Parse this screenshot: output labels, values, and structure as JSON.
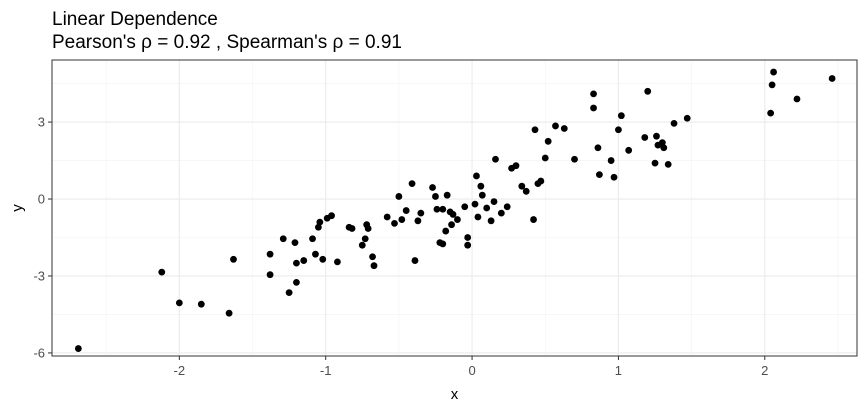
{
  "chart_data": {
    "type": "scatter",
    "title": "Linear Dependence",
    "subtitle": "Pearson's ρ = 0.92 , Spearman's ρ = 0.91",
    "xlabel": "x",
    "ylabel": "y",
    "xlim": [
      -2.87,
      2.63
    ],
    "ylim": [
      -6.12,
      5.42
    ],
    "x_ticks": [
      -2,
      -1,
      0,
      1,
      2
    ],
    "y_ticks": [
      -6,
      -3,
      0,
      3
    ],
    "grid": true,
    "theme": "bw",
    "point_color": "#000000",
    "points": [
      [
        -2.69,
        -5.83
      ],
      [
        -2.12,
        -2.85
      ],
      [
        -2.0,
        -4.05
      ],
      [
        -1.85,
        -4.1
      ],
      [
        -1.66,
        -4.45
      ],
      [
        -1.63,
        -2.35
      ],
      [
        -1.38,
        -2.95
      ],
      [
        -1.38,
        -2.15
      ],
      [
        -1.29,
        -1.55
      ],
      [
        -1.25,
        -3.65
      ],
      [
        -1.21,
        -1.7
      ],
      [
        -1.2,
        -2.5
      ],
      [
        -1.2,
        -3.25
      ],
      [
        -1.15,
        -2.4
      ],
      [
        -1.09,
        -1.55
      ],
      [
        -1.07,
        -2.15
      ],
      [
        -1.05,
        -1.1
      ],
      [
        -1.04,
        -0.9
      ],
      [
        -1.02,
        -2.35
      ],
      [
        -0.99,
        -0.75
      ],
      [
        -0.96,
        -0.65
      ],
      [
        -0.92,
        -2.45
      ],
      [
        -0.84,
        -1.1
      ],
      [
        -0.82,
        -1.15
      ],
      [
        -0.75,
        -1.8
      ],
      [
        -0.73,
        -1.55
      ],
      [
        -0.72,
        -1.0
      ],
      [
        -0.71,
        -1.15
      ],
      [
        -0.68,
        -2.25
      ],
      [
        -0.67,
        -2.6
      ],
      [
        -0.58,
        -0.7
      ],
      [
        -0.53,
        -0.95
      ],
      [
        -0.5,
        0.1
      ],
      [
        -0.48,
        -0.8
      ],
      [
        -0.45,
        -0.45
      ],
      [
        -0.41,
        0.6
      ],
      [
        -0.39,
        -2.4
      ],
      [
        -0.37,
        -0.85
      ],
      [
        -0.35,
        -0.55
      ],
      [
        -0.27,
        0.45
      ],
      [
        -0.25,
        0.1
      ],
      [
        -0.24,
        -0.4
      ],
      [
        -0.22,
        -1.7
      ],
      [
        -0.2,
        -1.75
      ],
      [
        -0.2,
        -0.4
      ],
      [
        -0.18,
        -1.25
      ],
      [
        -0.17,
        0.15
      ],
      [
        -0.15,
        -0.5
      ],
      [
        -0.14,
        -1.0
      ],
      [
        -0.13,
        -0.6
      ],
      [
        -0.1,
        -0.8
      ],
      [
        -0.05,
        -0.3
      ],
      [
        -0.03,
        -1.5
      ],
      [
        -0.03,
        -1.8
      ],
      [
        0.02,
        -0.2
      ],
      [
        0.03,
        0.9
      ],
      [
        0.04,
        -0.7
      ],
      [
        0.06,
        0.5
      ],
      [
        0.07,
        0.15
      ],
      [
        0.1,
        -0.35
      ],
      [
        0.13,
        -0.85
      ],
      [
        0.15,
        -0.1
      ],
      [
        0.16,
        1.55
      ],
      [
        0.2,
        -0.55
      ],
      [
        0.24,
        -0.3
      ],
      [
        0.27,
        1.2
      ],
      [
        0.3,
        1.3
      ],
      [
        0.34,
        0.5
      ],
      [
        0.37,
        0.3
      ],
      [
        0.42,
        -0.8
      ],
      [
        0.43,
        2.7
      ],
      [
        0.45,
        0.6
      ],
      [
        0.47,
        0.7
      ],
      [
        0.5,
        1.6
      ],
      [
        0.52,
        2.25
      ],
      [
        0.57,
        2.85
      ],
      [
        0.63,
        2.75
      ],
      [
        0.7,
        1.55
      ],
      [
        0.83,
        3.55
      ],
      [
        0.83,
        4.1
      ],
      [
        0.86,
        2.0
      ],
      [
        0.87,
        0.95
      ],
      [
        0.95,
        1.5
      ],
      [
        0.97,
        0.85
      ],
      [
        1.0,
        2.7
      ],
      [
        1.02,
        3.25
      ],
      [
        1.07,
        1.9
      ],
      [
        1.18,
        2.4
      ],
      [
        1.2,
        4.2
      ],
      [
        1.25,
        1.4
      ],
      [
        1.26,
        2.45
      ],
      [
        1.27,
        2.1
      ],
      [
        1.3,
        2.2
      ],
      [
        1.31,
        2.0
      ],
      [
        1.34,
        1.35
      ],
      [
        1.38,
        2.95
      ],
      [
        1.47,
        3.15
      ],
      [
        2.04,
        3.35
      ],
      [
        2.05,
        4.45
      ],
      [
        2.06,
        4.95
      ],
      [
        2.22,
        3.9
      ],
      [
        2.46,
        4.7
      ]
    ]
  }
}
